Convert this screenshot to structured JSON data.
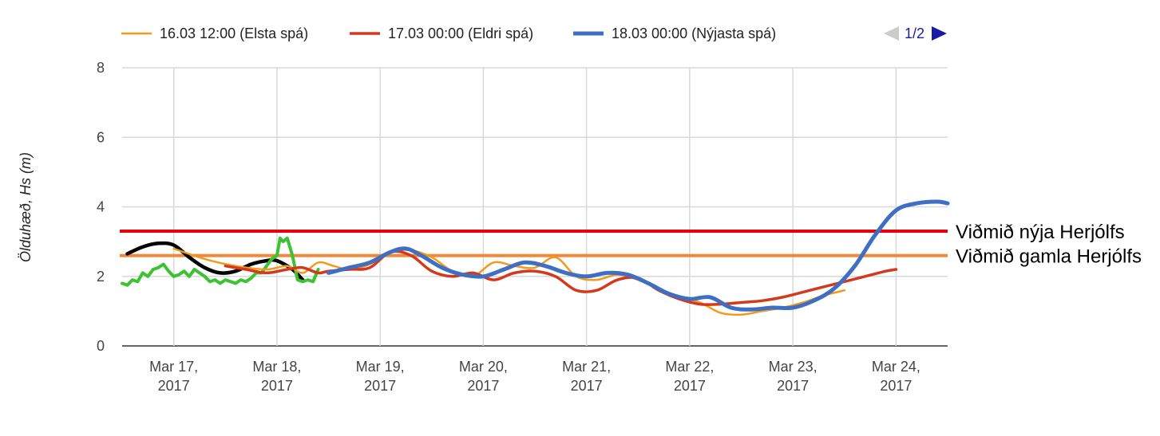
{
  "chart_data": {
    "type": "line",
    "title": "",
    "xlabel": "",
    "ylabel": "Ölduhæð, Hs (m)",
    "ylim": [
      0,
      8
    ],
    "xlim": [
      16.5,
      24.5
    ],
    "grid": true,
    "legend_position": "top",
    "legend_page": "1/2",
    "y_ticks": [
      "0",
      "2",
      "4",
      "6",
      "8"
    ],
    "x_ticks": [
      {
        "line1": "Mar 17,",
        "line2": "2017",
        "value": 17
      },
      {
        "line1": "Mar 18,",
        "line2": "2017",
        "value": 18
      },
      {
        "line1": "Mar 19,",
        "line2": "2017",
        "value": 19
      },
      {
        "line1": "Mar 20,",
        "line2": "2017",
        "value": 20
      },
      {
        "line1": "Mar 21,",
        "line2": "2017",
        "value": 21
      },
      {
        "line1": "Mar 22,",
        "line2": "2017",
        "value": 22
      },
      {
        "line1": "Mar 23,",
        "line2": "2017",
        "value": 23
      },
      {
        "line1": "Mar 24,",
        "line2": "2017",
        "value": 24
      }
    ],
    "thresholds": [
      {
        "label": "Viðmið nýja Herjólfs",
        "y": 3.3,
        "color": "#e8000b"
      },
      {
        "label": "Viðmið gamla Herjólfs",
        "y": 2.6,
        "color": "#f0883a"
      }
    ],
    "series": [
      {
        "name": "16.03 12:00 (Elsta spá)",
        "color": "#f29a1c",
        "width": 2.5,
        "legend": true,
        "x": [
          17.0,
          17.3,
          17.6,
          17.9,
          18.1,
          18.25,
          18.4,
          18.55,
          18.7,
          18.9,
          19.1,
          19.3,
          19.5,
          19.7,
          19.9,
          20.1,
          20.3,
          20.5,
          20.7,
          20.9,
          21.1,
          21.3,
          21.5,
          21.7,
          21.9,
          22.1,
          22.3,
          22.5,
          22.7,
          22.9,
          23.1,
          23.3,
          23.5
        ],
        "y": [
          2.8,
          2.5,
          2.3,
          2.2,
          2.3,
          2.1,
          2.4,
          2.3,
          2.2,
          2.35,
          2.7,
          2.75,
          2.55,
          2.15,
          2.0,
          2.4,
          2.3,
          2.25,
          2.55,
          2.0,
          1.9,
          2.05,
          1.9,
          1.65,
          1.4,
          1.25,
          0.95,
          0.9,
          1.0,
          1.1,
          1.25,
          1.45,
          1.6
        ]
      },
      {
        "name": "17.03 00:00 (Eldri spá)",
        "color": "#d4391d",
        "width": 3.5,
        "legend": true,
        "x": [
          17.5,
          17.7,
          17.9,
          18.1,
          18.25,
          18.4,
          18.5,
          18.7,
          18.9,
          19.1,
          19.3,
          19.5,
          19.7,
          19.9,
          20.1,
          20.3,
          20.5,
          20.7,
          20.9,
          21.1,
          21.3,
          21.5,
          21.7,
          21.9,
          22.1,
          22.3,
          22.5,
          22.7,
          22.9,
          23.1,
          23.3,
          23.5,
          23.7,
          23.9,
          24.0
        ],
        "y": [
          2.3,
          2.2,
          2.1,
          2.2,
          2.25,
          2.1,
          2.15,
          2.2,
          2.25,
          2.7,
          2.6,
          2.15,
          2.0,
          2.1,
          1.9,
          2.1,
          2.15,
          2.0,
          1.6,
          1.6,
          1.9,
          1.95,
          1.6,
          1.35,
          1.2,
          1.2,
          1.25,
          1.3,
          1.4,
          1.55,
          1.7,
          1.85,
          2.0,
          2.15,
          2.2
        ]
      },
      {
        "name": "18.03 00:00 (Nýjasta spá)",
        "color": "#3f6fc2",
        "width": 5,
        "legend": true,
        "x": [
          18.5,
          18.7,
          18.9,
          19.1,
          19.25,
          19.4,
          19.6,
          19.8,
          20.0,
          20.2,
          20.4,
          20.6,
          20.8,
          21.0,
          21.2,
          21.4,
          21.6,
          21.8,
          22.0,
          22.2,
          22.4,
          22.6,
          22.8,
          23.0,
          23.2,
          23.4,
          23.6,
          23.8,
          24.0,
          24.2,
          24.4,
          24.5
        ],
        "y": [
          2.1,
          2.25,
          2.4,
          2.7,
          2.8,
          2.6,
          2.25,
          2.05,
          2.0,
          2.2,
          2.4,
          2.3,
          2.1,
          2.0,
          2.1,
          2.05,
          1.8,
          1.5,
          1.35,
          1.4,
          1.1,
          1.05,
          1.1,
          1.1,
          1.3,
          1.65,
          2.3,
          3.2,
          3.9,
          4.1,
          4.15,
          4.1
        ]
      },
      {
        "name": "",
        "color": "#000000",
        "width": 4.5,
        "legend": false,
        "x": [
          16.55,
          16.7,
          16.85,
          17.0,
          17.15,
          17.3,
          17.45,
          17.6,
          17.75,
          17.9,
          18.0,
          18.15,
          18.25
        ],
        "y": [
          2.65,
          2.85,
          2.95,
          2.9,
          2.55,
          2.25,
          2.1,
          2.15,
          2.35,
          2.45,
          2.45,
          2.2,
          1.9
        ]
      },
      {
        "name": "",
        "color": "#3cc232",
        "width": 4,
        "legend": false,
        "x": [
          16.5,
          16.55,
          16.6,
          16.65,
          16.7,
          16.75,
          16.8,
          16.85,
          16.9,
          16.95,
          17.0,
          17.05,
          17.1,
          17.15,
          17.2,
          17.25,
          17.3,
          17.35,
          17.4,
          17.45,
          17.5,
          17.55,
          17.6,
          17.65,
          17.7,
          17.75,
          17.8,
          17.85,
          17.9,
          17.95,
          18.0,
          18.03,
          18.06,
          18.1,
          18.15,
          18.2,
          18.25,
          18.3,
          18.35,
          18.4
        ],
        "y": [
          1.8,
          1.75,
          1.9,
          1.85,
          2.1,
          2.0,
          2.2,
          2.25,
          2.35,
          2.15,
          2.0,
          2.05,
          2.15,
          2.0,
          2.2,
          2.1,
          2.0,
          1.85,
          1.9,
          1.8,
          1.9,
          1.85,
          1.8,
          1.9,
          1.85,
          1.95,
          2.1,
          2.1,
          2.3,
          2.5,
          2.6,
          3.1,
          3.0,
          3.1,
          2.6,
          1.9,
          1.85,
          1.9,
          1.85,
          2.2
        ]
      }
    ]
  }
}
